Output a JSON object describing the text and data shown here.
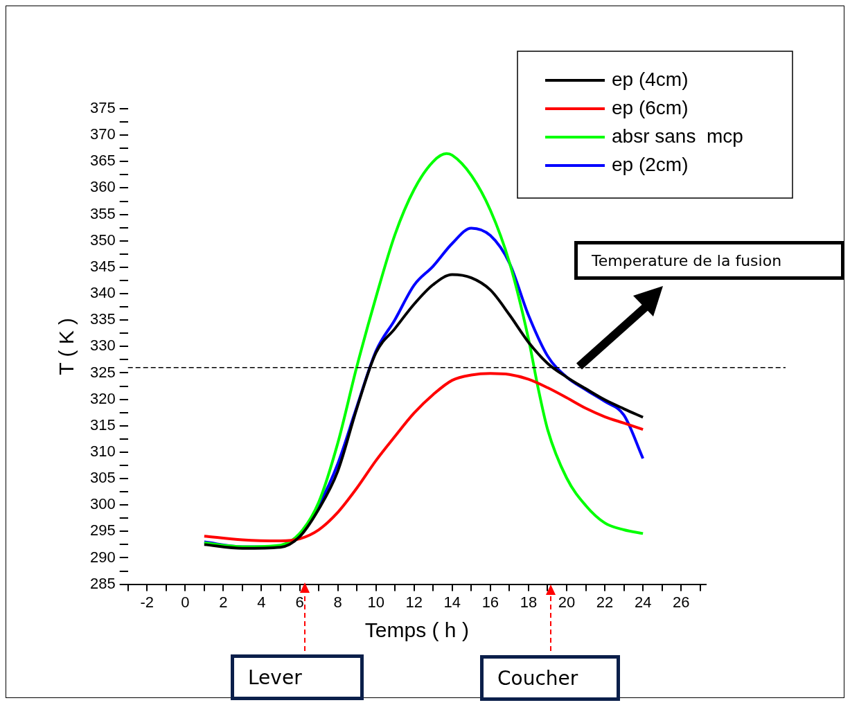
{
  "chart_data": {
    "type": "line",
    "xlabel": "Temps ( h )",
    "ylabel": "T ( K )",
    "xlim": [
      -3,
      27.3
    ],
    "ylim": [
      285,
      375
    ],
    "xticks": [
      {
        "value": -3,
        "label": null
      },
      -2,
      {
        "value": -1,
        "label": null
      },
      0,
      {
        "value": 1,
        "label": null
      },
      2,
      {
        "value": 3,
        "label": null
      },
      4,
      {
        "value": 5,
        "label": null
      },
      6,
      {
        "value": 7,
        "label": null
      },
      8,
      {
        "value": 9,
        "label": null
      },
      10,
      {
        "value": 11,
        "label": null
      },
      12,
      {
        "value": 13,
        "label": null
      },
      14,
      {
        "value": 15,
        "label": null
      },
      16,
      {
        "value": 17,
        "label": null
      },
      18,
      {
        "value": 19,
        "label": null
      },
      20,
      {
        "value": 21,
        "label": null
      },
      22,
      {
        "value": 23,
        "label": null
      },
      24,
      {
        "value": 25,
        "label": null
      },
      26,
      {
        "value": 27,
        "label": null
      }
    ],
    "yticks": [
      285,
      {
        "value": 287.5,
        "label": null
      },
      290,
      {
        "value": 292.5,
        "label": null
      },
      295,
      {
        "value": 297.5,
        "label": null
      },
      300,
      {
        "value": 302.5,
        "label": null
      },
      305,
      {
        "value": 307.5,
        "label": null
      },
      310,
      {
        "value": 312.5,
        "label": null
      },
      315,
      {
        "value": 317.5,
        "label": null
      },
      320,
      {
        "value": 322.5,
        "label": null
      },
      325,
      {
        "value": 327.5,
        "label": null
      },
      330,
      {
        "value": 332.5,
        "label": null
      },
      335,
      {
        "value": 337.5,
        "label": null
      },
      340,
      {
        "value": 342.5,
        "label": null
      },
      345,
      {
        "value": 347.5,
        "label": null
      },
      350,
      {
        "value": 352.5,
        "label": null
      },
      355,
      {
        "value": 357.5,
        "label": null
      },
      360,
      {
        "value": 362.5,
        "label": null
      },
      365,
      {
        "value": 367.5,
        "label": null
      },
      370,
      {
        "value": 372.5,
        "label": null
      },
      375
    ],
    "grid": false,
    "legend": "top right",
    "marker": "none",
    "line_style": "solid",
    "x": [
      1,
      3,
      5,
      6,
      7,
      8,
      9,
      10,
      11,
      12,
      13,
      14,
      15,
      16,
      17,
      18,
      19,
      20,
      21,
      22,
      23,
      24
    ],
    "series": [
      {
        "name": "ep (4cm)",
        "color": "#000000",
        "values": [
          292.5,
          291.8,
          292,
          294,
          299.2,
          306.4,
          318.3,
          328.8,
          333.4,
          338,
          341.7,
          343.6,
          343,
          340.7,
          336,
          330.8,
          326.8,
          324.2,
          322,
          319.9,
          318.2,
          316.6
        ]
      },
      {
        "name": "ep (6cm)",
        "color": "#ff0000",
        "values": [
          294.1,
          293.4,
          293.2,
          293.6,
          295.3,
          298.6,
          303.2,
          308.4,
          313,
          317.4,
          320.9,
          323.6,
          324.6,
          324.9,
          324.7,
          323.8,
          322.2,
          320.3,
          318.3,
          316.7,
          315.5,
          314.3
        ]
      },
      {
        "name": "absr sans  mcp",
        "color": "#00ff00",
        "x": [
          1,
          3,
          5,
          6,
          7,
          8,
          9,
          10,
          11,
          12,
          13,
          13.7,
          14,
          15,
          16,
          17,
          18,
          18.5,
          19,
          20,
          21,
          22,
          23,
          24
        ],
        "values": [
          292.8,
          292.1,
          292.4,
          294.6,
          300.5,
          311.7,
          326.2,
          339.3,
          351.2,
          359.7,
          365,
          366.5,
          366.2,
          362.4,
          355.8,
          345.9,
          331.4,
          322.2,
          314.3,
          305.1,
          299.9,
          296.6,
          295.3,
          294.6
        ]
      },
      {
        "name": "ep (2cm)",
        "color": "#0000ff",
        "values": [
          293,
          292.1,
          292.2,
          294.2,
          299.9,
          307.8,
          318.6,
          329.1,
          335.1,
          341.6,
          345.2,
          349.5,
          352.4,
          351,
          345.8,
          335.9,
          328.2,
          324.2,
          321.8,
          319.6,
          317,
          308.8
        ]
      }
    ],
    "ref_lines": [
      {
        "axis": "y",
        "value": 326,
        "color": "#000000",
        "line_style": "dashed"
      }
    ],
    "annotations": [
      "Temperature de la fusion",
      "Lever",
      "Coucher"
    ]
  }
}
